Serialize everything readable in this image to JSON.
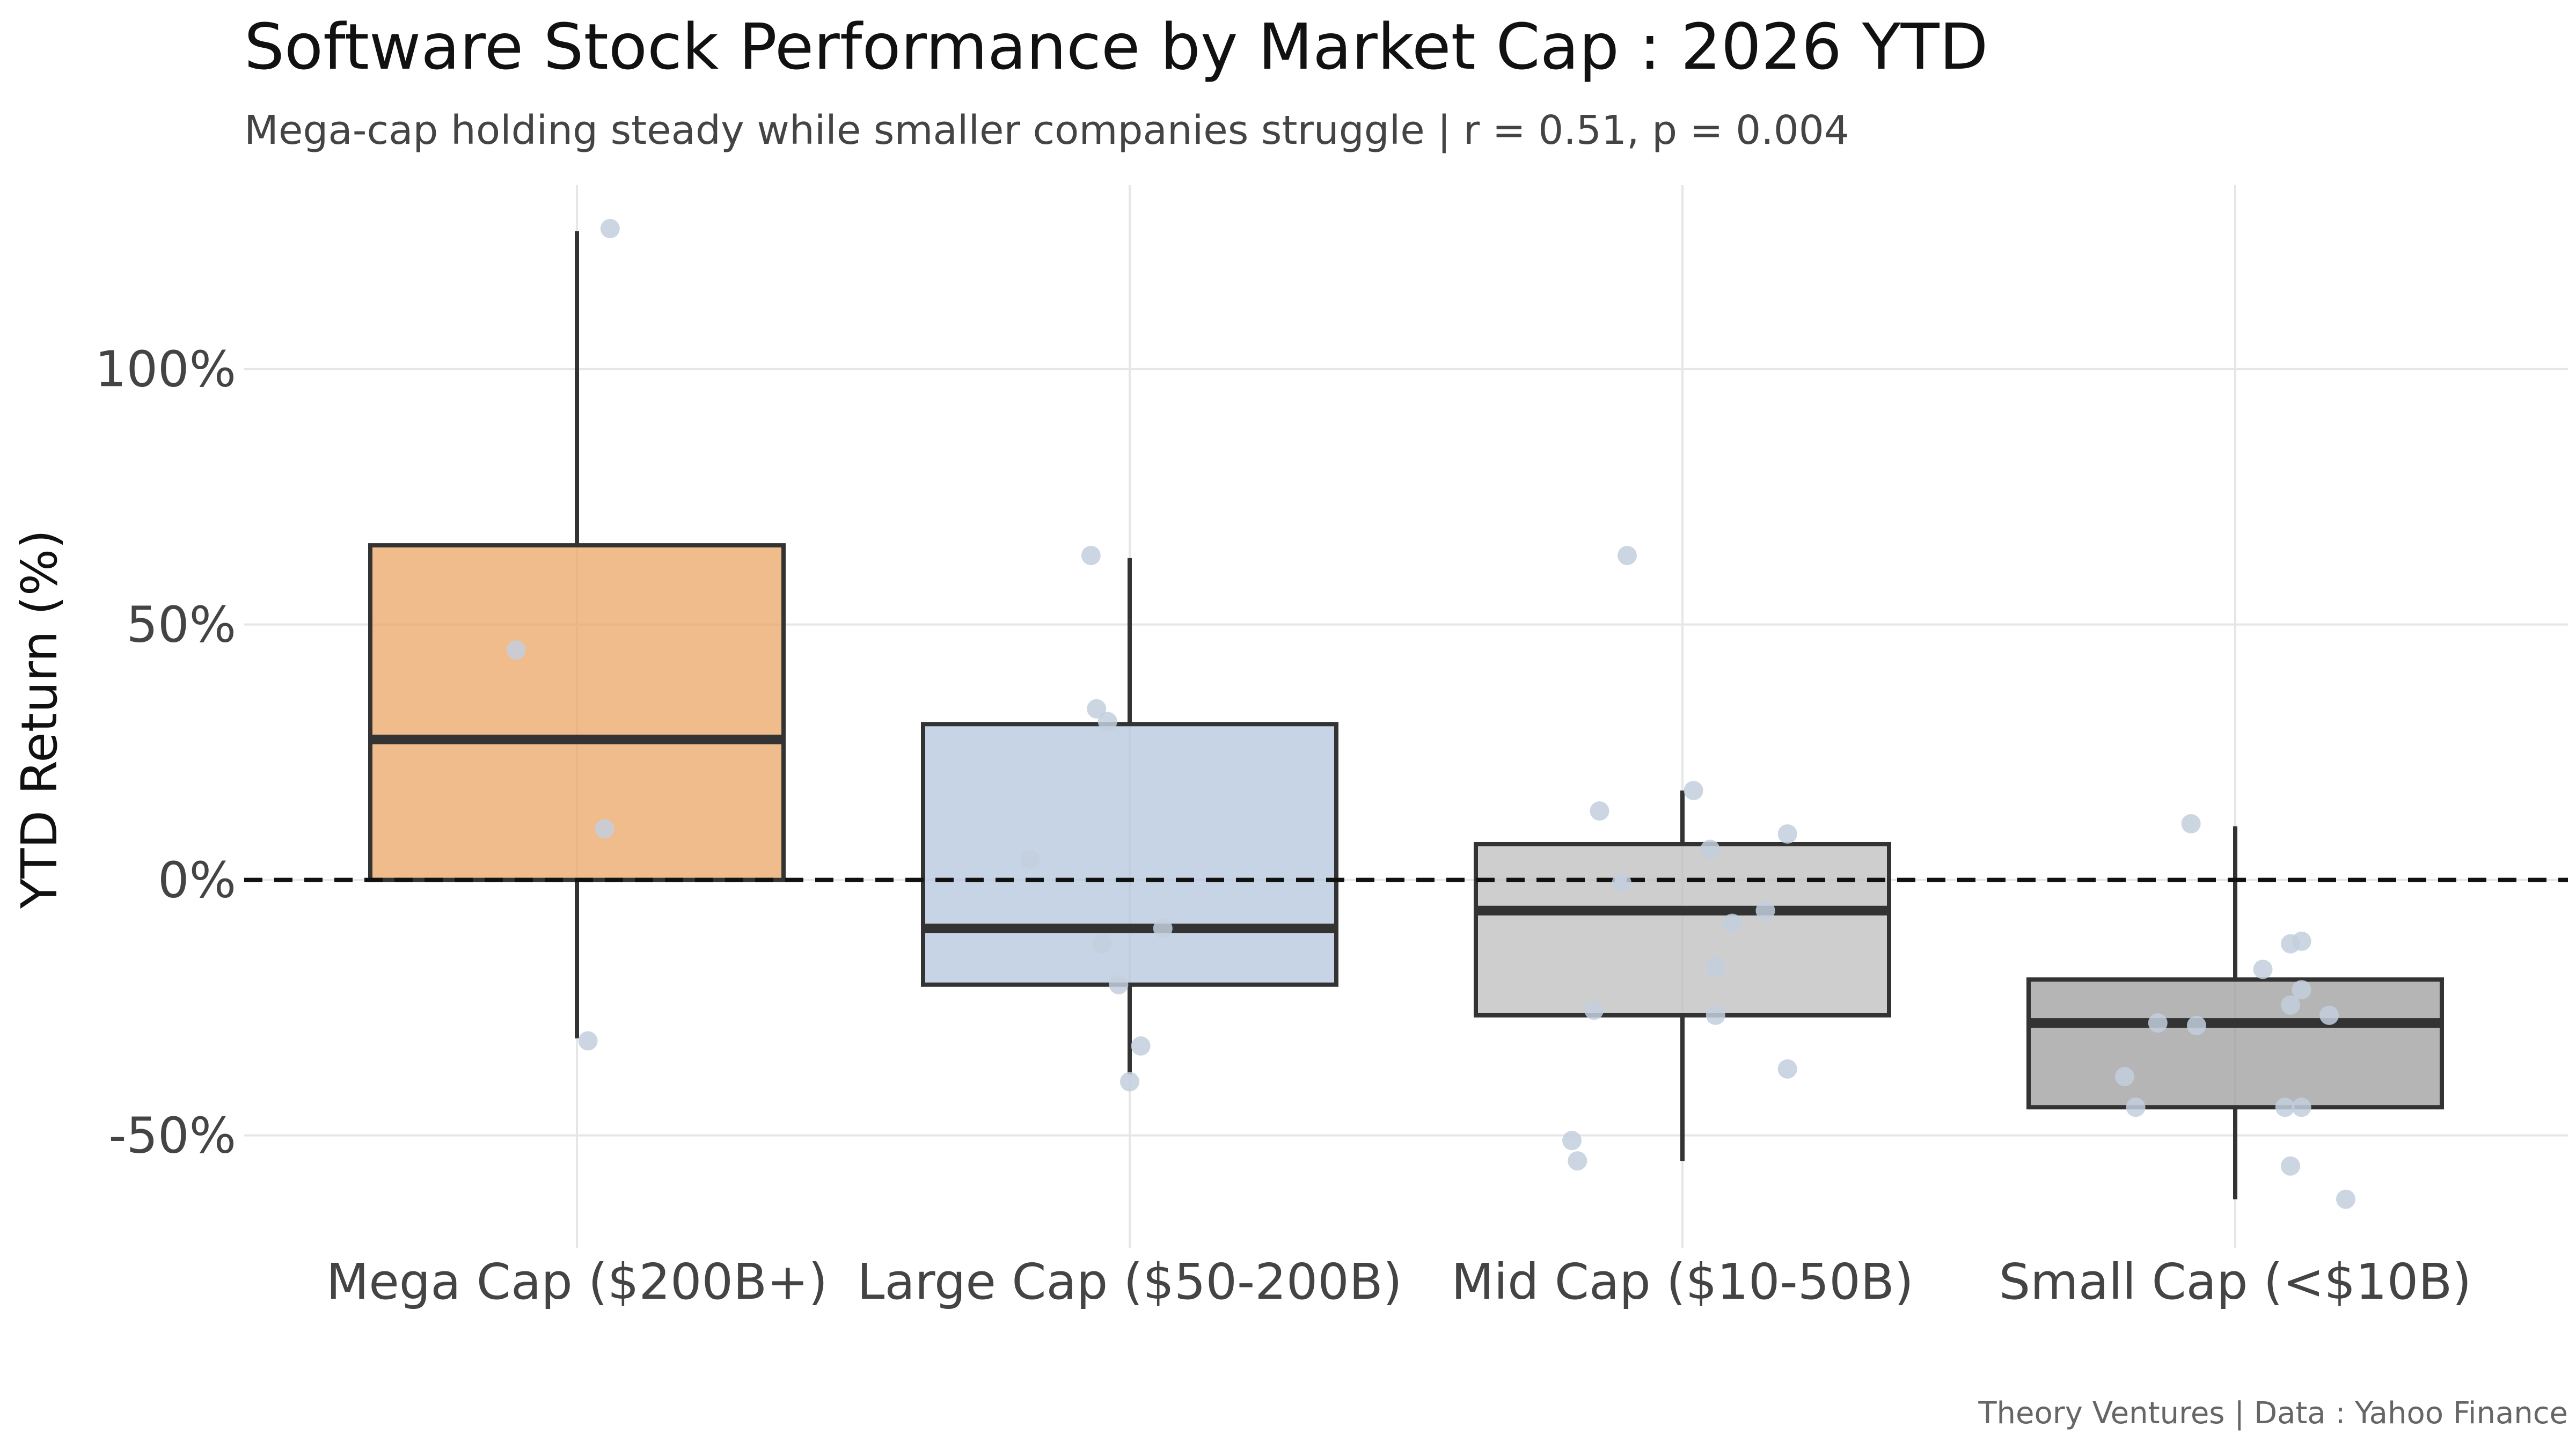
{
  "chart_data": {
    "type": "box",
    "title": "Software Stock Performance by Market Cap : 2026 YTD",
    "subtitle": "Mega-cap holding steady while smaller companies struggle | r = 0.51, p = 0.004",
    "ylabel": "YTD Return (%)",
    "xlabel": "",
    "caption": "Theory Ventures | Data : Yahoo Finance",
    "ylim": [
      -72,
      136
    ],
    "yticks": [
      -50,
      0,
      50,
      100
    ],
    "ytick_labels": [
      "-50%",
      "0%",
      "50%",
      "100%"
    ],
    "reference_line": 0,
    "groups": [
      {
        "name": "Mega Cap ($200B+)",
        "color": "#eba566",
        "whisker_low": -31,
        "q1": 0,
        "median": 27.5,
        "q3": 65.5,
        "whisker_high": 127,
        "points": [
          {
            "x": 0.06,
            "y": 127.5
          },
          {
            "x": -0.11,
            "y": 45
          },
          {
            "x": 0.05,
            "y": 10
          },
          {
            "x": 0.02,
            "y": -31.5
          }
        ]
      },
      {
        "name": "Large Cap ($50-200B)",
        "color": "#b3c6dc",
        "whisker_low": -38,
        "q1": -20.5,
        "median": -9.5,
        "q3": 30.5,
        "whisker_high": 63,
        "points": [
          {
            "x": -0.07,
            "y": 63.5
          },
          {
            "x": -0.06,
            "y": 33.5
          },
          {
            "x": -0.04,
            "y": 31
          },
          {
            "x": -0.18,
            "y": 4
          },
          {
            "x": 0.06,
            "y": -9.5
          },
          {
            "x": -0.05,
            "y": -12.5
          },
          {
            "x": -0.02,
            "y": -20.5
          },
          {
            "x": 0.02,
            "y": -32.5
          },
          {
            "x": 0.0,
            "y": -39.5
          }
        ]
      },
      {
        "name": "Mid Cap ($10-50B)",
        "color": "#bdbdbd",
        "whisker_low": -55,
        "q1": -26.5,
        "median": -6,
        "q3": 7,
        "whisker_high": 17.5,
        "points": [
          {
            "x": -0.1,
            "y": 63.5
          },
          {
            "x": 0.02,
            "y": 17.5
          },
          {
            "x": -0.15,
            "y": 13.5
          },
          {
            "x": 0.19,
            "y": 9
          },
          {
            "x": 0.05,
            "y": 6
          },
          {
            "x": -0.11,
            "y": -0.5
          },
          {
            "x": 0.15,
            "y": -6
          },
          {
            "x": 0.09,
            "y": -8.5
          },
          {
            "x": 0.06,
            "y": -17
          },
          {
            "x": -0.16,
            "y": -25.5
          },
          {
            "x": 0.06,
            "y": -26.5
          },
          {
            "x": 0.19,
            "y": -37
          },
          {
            "x": -0.2,
            "y": -51
          },
          {
            "x": -0.19,
            "y": -55
          }
        ]
      },
      {
        "name": "Small Cap (<$10B)",
        "color": "#9c9c9c",
        "whisker_low": -62.5,
        "q1": -44.5,
        "median": -28,
        "q3": -19.5,
        "whisker_high": 10.5,
        "points": [
          {
            "x": -0.08,
            "y": 11
          },
          {
            "x": 0.1,
            "y": -12.5
          },
          {
            "x": 0.12,
            "y": -12
          },
          {
            "x": 0.05,
            "y": -17.5
          },
          {
            "x": 0.12,
            "y": -21.5
          },
          {
            "x": 0.1,
            "y": -24.5
          },
          {
            "x": 0.17,
            "y": -26.5
          },
          {
            "x": -0.14,
            "y": -28
          },
          {
            "x": -0.07,
            "y": -28.5
          },
          {
            "x": -0.2,
            "y": -38.5
          },
          {
            "x": -0.18,
            "y": -44.5
          },
          {
            "x": 0.09,
            "y": -44.5
          },
          {
            "x": 0.12,
            "y": -44.5
          },
          {
            "x": 0.1,
            "y": -56
          },
          {
            "x": 0.2,
            "y": -62.5
          }
        ]
      }
    ],
    "point_color": "#c3cfdd"
  }
}
